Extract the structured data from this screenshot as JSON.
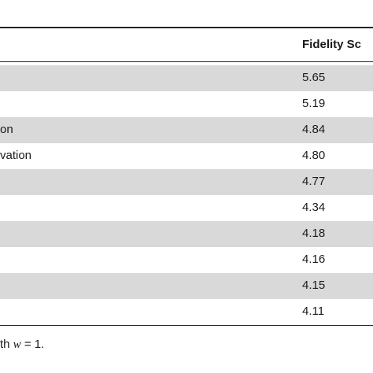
{
  "table": {
    "header": {
      "fidelity_label": "Fidelity Sc"
    },
    "rows": [
      {
        "label": "",
        "score": "5.65"
      },
      {
        "label": "",
        "score": "5.19"
      },
      {
        "label": "on",
        "score": "4.84"
      },
      {
        "label": "vation",
        "score": "4.80"
      },
      {
        "label": "",
        "score": "4.77"
      },
      {
        "label": "",
        "score": "4.34"
      },
      {
        "label": "",
        "score": "4.18"
      },
      {
        "label": "",
        "score": "4.16"
      },
      {
        "label": "",
        "score": "4.15"
      },
      {
        "label": "",
        "score": "4.11"
      }
    ]
  },
  "footnote": {
    "prefix": "th ",
    "variable": "w",
    "suffix": " = 1."
  }
}
